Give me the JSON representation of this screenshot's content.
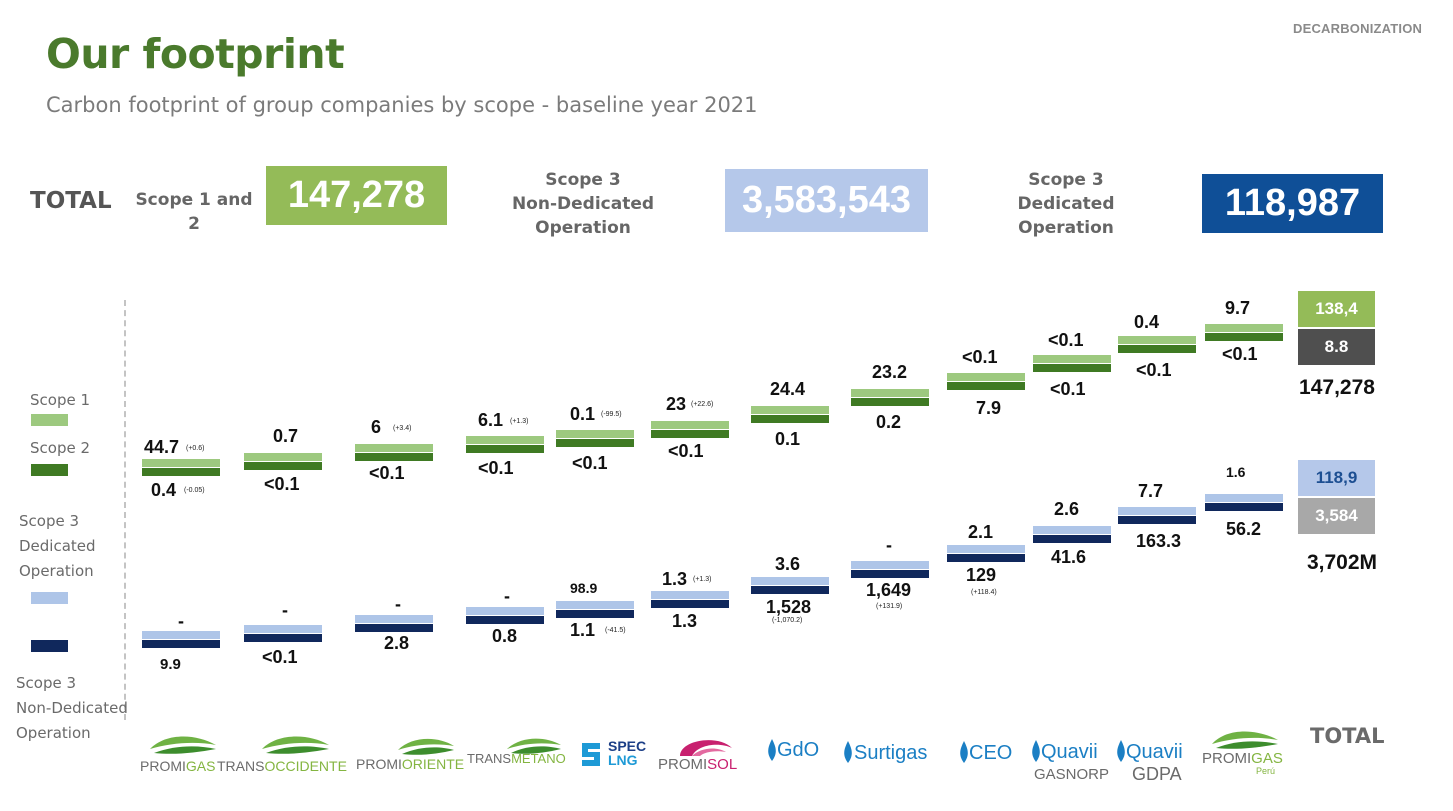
{
  "header": {
    "section_tag": "DECARBONIZATION",
    "title": "Our footprint",
    "subtitle": "Carbon footprint of group companies by scope - baseline year 2021"
  },
  "summary": {
    "total_label": "TOTAL",
    "scope12_label": "Scope 1 and 2",
    "scope12_value": "147,278",
    "scope3_nd_label_line1": "Scope 3",
    "scope3_nd_label_line2": "Non-Dedicated",
    "scope3_nd_label_line3": "Operation",
    "scope3_nd_value": "3,583,543",
    "scope3_d_label_line1": "Scope 3",
    "scope3_d_label_line2": "Dedicated",
    "scope3_d_label_line3": "Operation",
    "scope3_d_value": "118,987"
  },
  "legend": {
    "scope1": "Scope 1",
    "scope2": "Scope 2",
    "scope3_d_line1": "Scope 3",
    "scope3_d_line2": "Dedicated",
    "scope3_d_line3": "Operation",
    "scope3_nd_line1": "Scope 3",
    "scope3_nd_line2": "Non-Dedicated",
    "scope3_nd_line3": "Operation"
  },
  "colors": {
    "scope1": "#9dc97f",
    "scope2": "#3f7a23",
    "scope3_dedicated": "#aec5e8",
    "scope3_non_dedicated": "#10285c",
    "box_scope12": "#94bb58",
    "box_nd": "#b5c8ea",
    "box_d": "#0f4f97",
    "total_scope2": "#4f4f4f",
    "total_nd": "#a8a8a8"
  },
  "companies": [
    {
      "logo": "PROMIGAS",
      "s1": "44.7",
      "s1_note": "(+0.6)",
      "s2": "0.4",
      "s2_note": "(-0.05)",
      "s3d": "-",
      "s3d_note": "",
      "s3nd": "9.9",
      "s3nd_note": ""
    },
    {
      "logo": "TRANSOCCIDENTE",
      "s1": "0.7",
      "s1_note": "",
      "s2": "<0.1",
      "s2_note": "",
      "s3d": "-",
      "s3d_note": "",
      "s3nd": "<0.1",
      "s3nd_note": ""
    },
    {
      "logo": "PROMIORIENTE",
      "s1": "6",
      "s1_note": "(+3.4)",
      "s2": "<0.1",
      "s2_note": "",
      "s3d": "-",
      "s3d_note": "",
      "s3nd": "2.8",
      "s3nd_note": ""
    },
    {
      "logo": "TRANSMETANO",
      "s1": "6.1",
      "s1_note": "(+1.3)",
      "s2": "<0.1",
      "s2_note": "",
      "s3d": "-",
      "s3d_note": "",
      "s3nd": "0.8",
      "s3nd_note": ""
    },
    {
      "logo": "SPEC LNG",
      "s1": "0.1",
      "s1_note": "(-99.5)",
      "s2": "<0.1",
      "s2_note": "",
      "s3d": "98.9",
      "s3d_note": "",
      "s3nd": "1.1",
      "s3nd_note": "(-41.5)"
    },
    {
      "logo": "PROMISOL",
      "s1": "23",
      "s1_note": "(+22.6)",
      "s2": "<0.1",
      "s2_note": "",
      "s3d": "1.3",
      "s3d_note": "(+1.3)",
      "s3nd": "1.3",
      "s3nd_note": ""
    },
    {
      "logo": "GdO",
      "s1": "24.4",
      "s1_note": "",
      "s2": "0.1",
      "s2_note": "",
      "s3d": "3.6",
      "s3d_note": "",
      "s3nd": "1,528",
      "s3nd_note": "(-1,070.2)"
    },
    {
      "logo": "Surtigas",
      "s1": "23.2",
      "s1_note": "",
      "s2": "0.2",
      "s2_note": "",
      "s3d": "-",
      "s3d_note": "",
      "s3nd": "1,649",
      "s3nd_note": "(+131.9)"
    },
    {
      "logo": "CEO",
      "s1": "<0.1",
      "s1_note": "",
      "s2": "7.9",
      "s2_note": "",
      "s3d": "2.1",
      "s3d_note": "",
      "s3nd": "129",
      "s3nd_note": "(+118.4)"
    },
    {
      "logo": "Quavii GASNORP",
      "s1": "<0.1",
      "s1_note": "",
      "s2": "<0.1",
      "s2_note": "",
      "s3d": "2.6",
      "s3d_note": "",
      "s3nd": "41.6",
      "s3nd_note": ""
    },
    {
      "logo": "Quavii GDPA",
      "s1": "0.4",
      "s1_note": "",
      "s2": "<0.1",
      "s2_note": "",
      "s3d": "7.7",
      "s3d_note": "",
      "s3nd": "163.3",
      "s3nd_note": ""
    },
    {
      "logo": "PROMIGAS Perú",
      "s1": "9.7",
      "s1_note": "",
      "s2": "<0.1",
      "s2_note": "",
      "s3d": "1.6",
      "s3d_note": "",
      "s3nd": "56.2",
      "s3nd_note": ""
    }
  ],
  "logos": {
    "promigas_a": "PROMI",
    "promigas_b": "GAS",
    "transoccidente_a": "TRANS",
    "transoccidente_b": "OCCIDENTE",
    "promioriente_a": "PROMI",
    "promioriente_b": "ORIENTE",
    "transmetano_a": "TRANS",
    "transmetano_b": "METANO",
    "spec_a": "SPEC",
    "spec_b": "LNG",
    "promisol_a": "PROMI",
    "promisol_b": "SOL",
    "gdo": "GdO",
    "surtigas": "Surtigas",
    "ceo": "CEO",
    "quavii1_a": "Quavii",
    "quavii1_b": "GASNORP",
    "quavii2_a": "Quavii",
    "quavii2_b": "GDPA",
    "peru_a": "PROMI",
    "peru_b": "GAS",
    "peru_c": "Perú"
  },
  "totals": {
    "scope1": "138,4",
    "scope2": "8.8",
    "scope12_sum": "147,278",
    "scope3_d": "118,9",
    "scope3_nd": "3,584",
    "scope3_sum": "3,702M",
    "footer_label": "TOTAL"
  }
}
